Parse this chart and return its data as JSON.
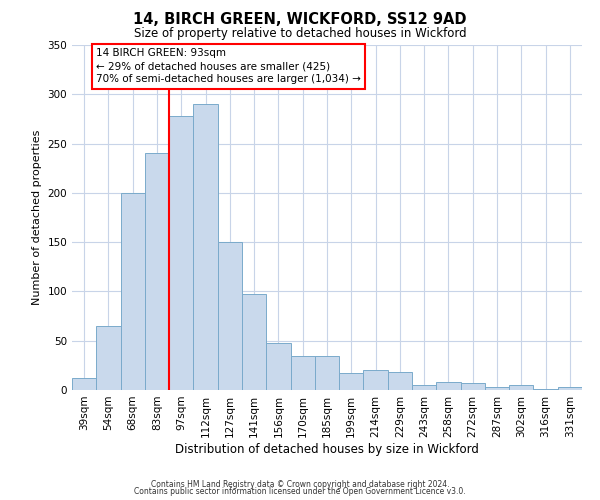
{
  "title": "14, BIRCH GREEN, WICKFORD, SS12 9AD",
  "subtitle": "Size of property relative to detached houses in Wickford",
  "xlabel": "Distribution of detached houses by size in Wickford",
  "ylabel": "Number of detached properties",
  "bar_labels": [
    "39sqm",
    "54sqm",
    "68sqm",
    "83sqm",
    "97sqm",
    "112sqm",
    "127sqm",
    "141sqm",
    "156sqm",
    "170sqm",
    "185sqm",
    "199sqm",
    "214sqm",
    "229sqm",
    "243sqm",
    "258sqm",
    "272sqm",
    "287sqm",
    "302sqm",
    "316sqm",
    "331sqm"
  ],
  "bar_heights": [
    12,
    65,
    200,
    240,
    278,
    290,
    150,
    97,
    48,
    35,
    35,
    17,
    20,
    18,
    5,
    8,
    7,
    3,
    5,
    1,
    3
  ],
  "bar_color": "#c9d9ec",
  "bar_edge_color": "#7aaacb",
  "red_line_index": 4,
  "ylim": [
    0,
    350
  ],
  "yticks": [
    0,
    50,
    100,
    150,
    200,
    250,
    300,
    350
  ],
  "annotation_title": "14 BIRCH GREEN: 93sqm",
  "annotation_line1": "← 29% of detached houses are smaller (425)",
  "annotation_line2": "70% of semi-detached houses are larger (1,034) →",
  "footer1": "Contains HM Land Registry data © Crown copyright and database right 2024.",
  "footer2": "Contains public sector information licensed under the Open Government Licence v3.0.",
  "background_color": "#ffffff",
  "grid_color": "#c8d4e8"
}
